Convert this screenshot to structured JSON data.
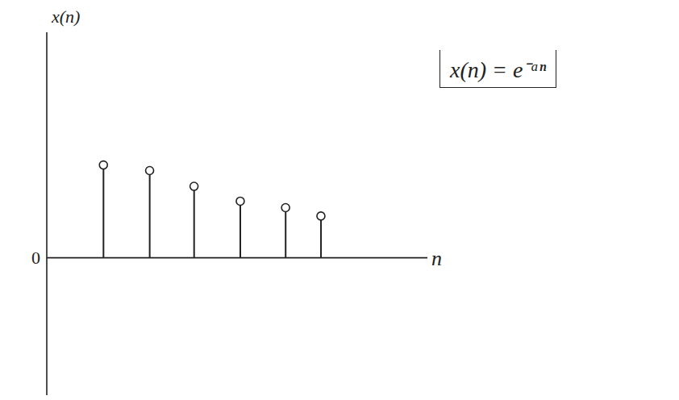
{
  "chart_data": {
    "type": "stem",
    "x_label": "n",
    "y_label": "x(n)",
    "annotation": "x(n) = e⁻ᵃⁿ",
    "x": [
      1.25,
      2.27,
      3.25,
      4.27,
      5.27,
      6.05
    ],
    "values": [
      1.0,
      0.94,
      0.77,
      0.61,
      0.54,
      0.45
    ],
    "xlim": [
      0,
      8.4
    ],
    "xticks": [],
    "ylim": [
      -1.48,
      2.43
    ],
    "yticks": [
      0
    ],
    "tick_labels": "y",
    "color": "#222222",
    "marker": "open_circle",
    "grid": false
  }
}
